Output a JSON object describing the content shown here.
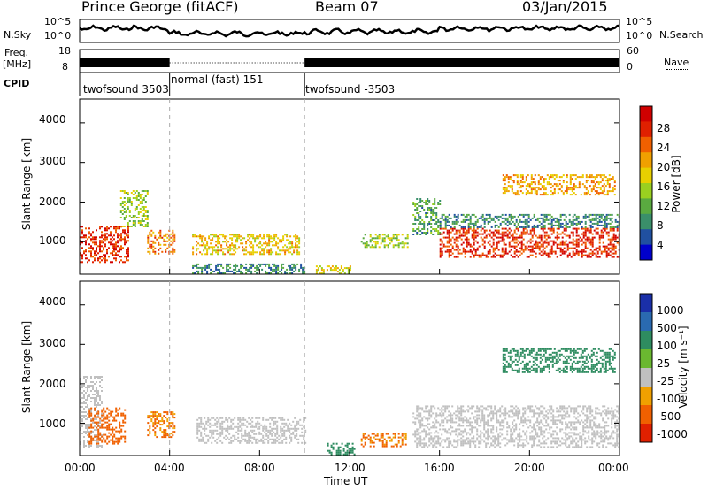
{
  "header": {
    "station": "Prince George (fitACF)",
    "beam": "Beam 07",
    "date": "03/Jan/2015"
  },
  "labels": {
    "nsky": "N.Sky",
    "nsearch": "N.Search",
    "freq": "Freq.",
    "mhz": "[MHz]",
    "nave": "Nave",
    "cpid": "CPID"
  },
  "noise_panel": {
    "left_ticks": [
      "10^5",
      "10^0"
    ],
    "right_ticks": [
      "10^5",
      "10^0"
    ]
  },
  "freq_panel": {
    "left_ticks": [
      "18",
      "8"
    ],
    "right_ticks": [
      "60",
      "0"
    ]
  },
  "cpid_segments": [
    {
      "label": "twofsound 3503",
      "start_h": 0,
      "end_h": 4
    },
    {
      "label": "normal (fast) 151",
      "start_h": 4,
      "end_h": 10
    },
    {
      "label": "twofsound -3503",
      "start_h": 10,
      "end_h": 24
    }
  ],
  "x_axis": {
    "label": "Time UT",
    "ticks": [
      "00:00",
      "04:00",
      "08:00",
      "12:00",
      "16:00",
      "20:00",
      "00:00"
    ],
    "range_h": [
      0,
      24
    ]
  },
  "power_panel": {
    "ylabel": "Slant Range [km]",
    "yticks": [
      "4000",
      "3000",
      "2000",
      "1000"
    ],
    "colorbar_label": "Power [dB]",
    "colorbar_ticks": [
      "28",
      "24",
      "20",
      "16",
      "12",
      "8",
      "4"
    ],
    "colors": [
      "#0000cc",
      "#2050a0",
      "#3a8f6a",
      "#5aaa40",
      "#9ad020",
      "#e8d000",
      "#f0a000",
      "#f06000",
      "#e02000",
      "#d00000"
    ]
  },
  "velocity_panel": {
    "ylabel": "Slant Range [km]",
    "yticks": [
      "4000",
      "3000",
      "2000",
      "1000"
    ],
    "colorbar_label": "Velocity [m s⁻¹]",
    "colorbar_ticks": [
      "1000",
      "500",
      "100",
      "25",
      "-25",
      "-100",
      "-500",
      "-1000"
    ],
    "colors": [
      "#1a2fa8",
      "#2a6ab0",
      "#2e8c60",
      "#6ab830",
      "#c0c0c0",
      "#f0a000",
      "#f06000",
      "#e02000"
    ]
  },
  "chart_data": {
    "type": "heatmap",
    "x_unit": "hours UT",
    "y_unit": "km",
    "xlim": [
      0,
      24
    ],
    "ylim": [
      180,
      4600
    ],
    "power_regions": [
      {
        "t0": 0.0,
        "t1": 2.2,
        "r0": 500,
        "r1": 1400,
        "power_db": 26
      },
      {
        "t0": 1.8,
        "t1": 3.0,
        "r0": 1400,
        "r1": 2300,
        "power_db": 14
      },
      {
        "t0": 3.0,
        "t1": 4.2,
        "r0": 700,
        "r1": 1300,
        "power_db": 22
      },
      {
        "t0": 5.0,
        "t1": 9.8,
        "r0": 700,
        "r1": 1200,
        "power_db": 18
      },
      {
        "t0": 5.0,
        "t1": 10.0,
        "r0": 200,
        "r1": 450,
        "power_db": 8
      },
      {
        "t0": 10.5,
        "t1": 12.0,
        "r0": 200,
        "r1": 400,
        "power_db": 16
      },
      {
        "t0": 12.5,
        "t1": 14.6,
        "r0": 850,
        "r1": 1200,
        "power_db": 14
      },
      {
        "t0": 14.8,
        "t1": 16.0,
        "r0": 1200,
        "r1": 2100,
        "power_db": 10
      },
      {
        "t0": 16.0,
        "t1": 24.0,
        "r0": 600,
        "r1": 1350,
        "power_db": 26
      },
      {
        "t0": 16.0,
        "t1": 24.0,
        "r0": 1350,
        "r1": 1700,
        "power_db": 8
      },
      {
        "t0": 18.8,
        "t1": 23.8,
        "r0": 2200,
        "r1": 2700,
        "power_db": 20
      }
    ],
    "velocity_regions": [
      {
        "t0": 0.0,
        "t1": 1.0,
        "r0": 400,
        "r1": 2200,
        "velocity": 0
      },
      {
        "t0": 0.4,
        "t1": 2.0,
        "r0": 500,
        "r1": 1400,
        "velocity": -600
      },
      {
        "t0": 3.0,
        "t1": 4.2,
        "r0": 650,
        "r1": 1300,
        "velocity": -300
      },
      {
        "t0": 5.2,
        "t1": 10.0,
        "r0": 500,
        "r1": 1150,
        "velocity": 0
      },
      {
        "t0": 11.0,
        "t1": 12.2,
        "r0": 200,
        "r1": 500,
        "velocity": 150
      },
      {
        "t0": 12.5,
        "t1": 14.5,
        "r0": 400,
        "r1": 750,
        "velocity": -300
      },
      {
        "t0": 14.8,
        "t1": 24.0,
        "r0": 400,
        "r1": 1450,
        "velocity": 0
      },
      {
        "t0": 18.8,
        "t1": 23.8,
        "r0": 2300,
        "r1": 2900,
        "velocity": 120
      }
    ]
  }
}
